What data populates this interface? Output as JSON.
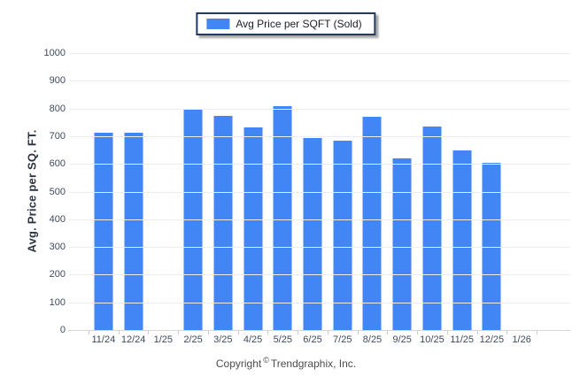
{
  "legend": {
    "label": "Avg Price per SQFT (Sold)",
    "swatch_color": "#4285F4"
  },
  "chart_data": {
    "type": "bar",
    "title": "",
    "categories": [
      "11/24",
      "12/24",
      "1/25",
      "2/25",
      "3/25",
      "4/25",
      "5/25",
      "6/25",
      "7/25",
      "8/25",
      "9/25",
      "10/25",
      "11/25",
      "12/25",
      "1/26"
    ],
    "series": [
      {
        "name": "Avg Price per SQFT (Sold)",
        "values": [
          712,
          712,
          null,
          795,
          772,
          731,
          809,
          692,
          684,
          771,
          621,
          735,
          650,
          603,
          null
        ]
      }
    ],
    "xlabel": "",
    "ylabel": "Avg. Price per SQ. FT.",
    "ylim": [
      0,
      1000
    ],
    "ytick_step": 100,
    "grid": true,
    "legend_position": "top-center",
    "bar_color": "#4285F4",
    "gridline_color": "#ececec"
  },
  "footer": {
    "copyright_prefix": "Copyright",
    "copyright_symbol": "©",
    "copyright_suffix": "Trendgraphix, Inc."
  }
}
